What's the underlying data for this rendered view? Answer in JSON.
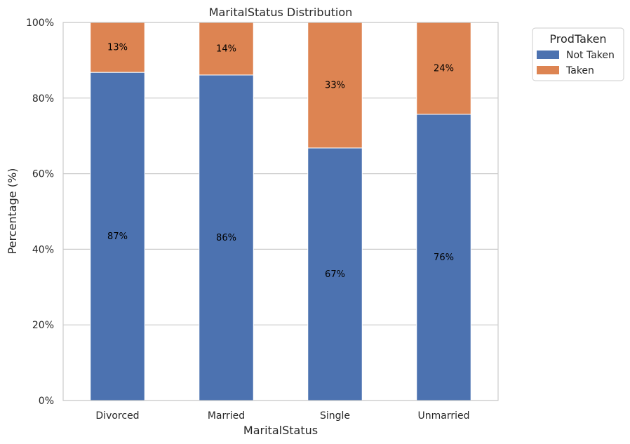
{
  "chart_data": {
    "type": "bar",
    "stacked": true,
    "title": "MaritalStatus Distribution",
    "xlabel": "MaritalStatus",
    "ylabel": "Percentage (%)",
    "ylim": [
      0,
      100
    ],
    "y_ticks": [
      0,
      20,
      40,
      60,
      80,
      100
    ],
    "y_tick_labels": [
      "0%",
      "20%",
      "40%",
      "60%",
      "80%",
      "100%"
    ],
    "categories": [
      "Divorced",
      "Married",
      "Single",
      "Unmarried"
    ],
    "series": [
      {
        "name": "Not Taken",
        "values": [
          86.8,
          86.1,
          66.8,
          75.7
        ],
        "labels": [
          "87%",
          "86%",
          "67%",
          "76%"
        ],
        "color": "#4c72b0"
      },
      {
        "name": "Taken",
        "values": [
          13.2,
          13.9,
          33.2,
          24.3
        ],
        "labels": [
          "13%",
          "14%",
          "33%",
          "24%"
        ],
        "color": "#dd8452"
      }
    ],
    "legend": {
      "title": "ProdTaken",
      "placement": "outside-top-right"
    },
    "grid": "horizontal"
  }
}
